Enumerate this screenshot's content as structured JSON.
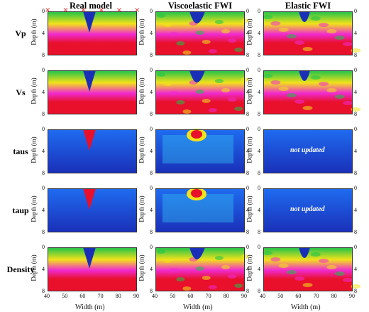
{
  "columns": [
    "Real model",
    "Viscoelastic FWI",
    "Elastic FWI"
  ],
  "rows": [
    "Vp",
    "Vs",
    "taus",
    "taup",
    "Density"
  ],
  "depth_label": "Depth (m)",
  "width_label": "Width (m)",
  "x_ticks": [
    "40",
    "50",
    "60",
    "70",
    "80",
    "90"
  ],
  "y_ticks": [
    "0",
    "4",
    "8"
  ],
  "not_updated_label": "not updated",
  "colors": {
    "blue": "#1a2fb8",
    "green": "#19c24a",
    "yellow": "#f2e21a",
    "pink": "#f02ad0",
    "red": "#e8102a",
    "light_blue": "#1f6cf0",
    "marker": "#e82020"
  }
}
